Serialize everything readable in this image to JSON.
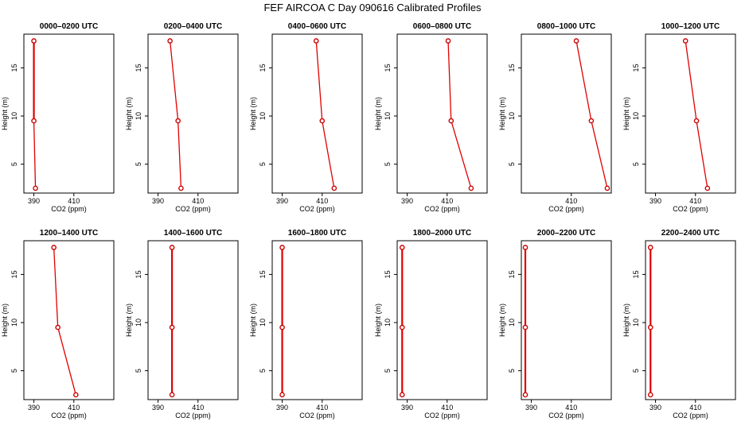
{
  "figure_title": "FEF AIRCOA C  Day 090616  Calibrated Profiles",
  "chart_data": [
    {
      "type": "line",
      "title": "0000–0200 UTC",
      "xlabel": "CO2 (ppm)",
      "ylabel": "Height (m)",
      "xticks": [
        390,
        410
      ],
      "yticks": [
        5,
        10,
        15
      ],
      "xlim": [
        385,
        430
      ],
      "ylim": [
        2,
        18.5
      ],
      "series": [
        {
          "points": [
            {
              "x": 390.0,
              "y": 17.8
            },
            {
              "x": 390.0,
              "y": 9.5
            },
            {
              "x": 390.8,
              "y": 2.5
            }
          ]
        }
      ]
    },
    {
      "type": "line",
      "title": "0200–0400 UTC",
      "xlabel": "CO2 (ppm)",
      "ylabel": "Height (m)",
      "xticks": [
        390,
        410
      ],
      "yticks": [
        5,
        10,
        15
      ],
      "xlim": [
        385,
        430
      ],
      "ylim": [
        2,
        18.5
      ],
      "series": [
        {
          "points": [
            {
              "x": 396.0,
              "y": 17.8
            },
            {
              "x": 400.0,
              "y": 9.5
            },
            {
              "x": 401.5,
              "y": 2.5
            }
          ]
        }
      ]
    },
    {
      "type": "line",
      "title": "0400–0600 UTC",
      "xlabel": "CO2 (ppm)",
      "ylabel": "Height (m)",
      "xticks": [
        390,
        410
      ],
      "yticks": [
        5,
        10,
        15
      ],
      "xlim": [
        385,
        430
      ],
      "ylim": [
        2,
        18.5
      ],
      "series": [
        {
          "points": [
            {
              "x": 407.0,
              "y": 17.8
            },
            {
              "x": 410.0,
              "y": 9.5
            },
            {
              "x": 416.0,
              "y": 2.5
            }
          ]
        }
      ]
    },
    {
      "type": "line",
      "title": "0600–0800 UTC",
      "xlabel": "CO2 (ppm)",
      "ylabel": "Height (m)",
      "xticks": [
        390,
        410
      ],
      "yticks": [
        5,
        10,
        15
      ],
      "xlim": [
        385,
        430
      ],
      "ylim": [
        2,
        18.5
      ],
      "series": [
        {
          "points": [
            {
              "x": 410.5,
              "y": 17.8
            },
            {
              "x": 412.0,
              "y": 9.5
            },
            {
              "x": 422.0,
              "y": 2.5
            }
          ]
        }
      ]
    },
    {
      "type": "line",
      "title": "0800–1000 UTC",
      "xlabel": "CO2 (ppm)",
      "ylabel": "Height (m)",
      "xticks": [
        410
      ],
      "yticks": [
        5,
        10,
        15
      ],
      "xlim": [
        385,
        430
      ],
      "ylim": [
        2,
        18.5
      ],
      "series": [
        {
          "points": [
            {
              "x": 412.5,
              "y": 17.8
            },
            {
              "x": 420.0,
              "y": 9.5
            },
            {
              "x": 428.0,
              "y": 2.5
            }
          ]
        }
      ]
    },
    {
      "type": "line",
      "title": "1000–1200 UTC",
      "xlabel": "CO2 (ppm)",
      "ylabel": "Height (m)",
      "xticks": [
        390,
        410
      ],
      "yticks": [
        5,
        10,
        15
      ],
      "xlim": [
        385,
        430
      ],
      "ylim": [
        2,
        18.5
      ],
      "series": [
        {
          "points": [
            {
              "x": 405.0,
              "y": 17.8
            },
            {
              "x": 410.5,
              "y": 9.5
            },
            {
              "x": 416.0,
              "y": 2.5
            }
          ]
        }
      ]
    },
    {
      "type": "line",
      "title": "1200–1400 UTC",
      "xlabel": "CO2 (ppm)",
      "ylabel": "Height (m)",
      "xticks": [
        390,
        410
      ],
      "yticks": [
        5,
        10,
        15
      ],
      "xlim": [
        385,
        430
      ],
      "ylim": [
        2,
        18.5
      ],
      "series": [
        {
          "points": [
            {
              "x": 400.0,
              "y": 17.8
            },
            {
              "x": 402.0,
              "y": 9.5
            },
            {
              "x": 411.0,
              "y": 2.5
            }
          ]
        }
      ]
    },
    {
      "type": "line",
      "title": "1400–1600 UTC",
      "xlabel": "CO2 (ppm)",
      "ylabel": "Height (m)",
      "xticks": [
        390,
        410
      ],
      "yticks": [
        5,
        10,
        15
      ],
      "xlim": [
        385,
        430
      ],
      "ylim": [
        2,
        18.5
      ],
      "series": [
        {
          "points": [
            {
              "x": 397.0,
              "y": 17.8
            },
            {
              "x": 397.0,
              "y": 9.5
            },
            {
              "x": 397.0,
              "y": 2.5
            }
          ]
        }
      ]
    },
    {
      "type": "line",
      "title": "1600–1800 UTC",
      "xlabel": "CO2 (ppm)",
      "ylabel": "Height (m)",
      "xticks": [
        390,
        410
      ],
      "yticks": [
        5,
        10,
        15
      ],
      "xlim": [
        385,
        430
      ],
      "ylim": [
        2,
        18.5
      ],
      "series": [
        {
          "points": [
            {
              "x": 390.0,
              "y": 17.8
            },
            {
              "x": 390.0,
              "y": 9.5
            },
            {
              "x": 390.0,
              "y": 2.5
            }
          ]
        }
      ]
    },
    {
      "type": "line",
      "title": "1800–2000 UTC",
      "xlabel": "CO2 (ppm)",
      "ylabel": "Height (m)",
      "xticks": [
        390,
        410
      ],
      "yticks": [
        5,
        10,
        15
      ],
      "xlim": [
        385,
        430
      ],
      "ylim": [
        2,
        18.5
      ],
      "series": [
        {
          "points": [
            {
              "x": 387.5,
              "y": 17.8
            },
            {
              "x": 387.5,
              "y": 9.5
            },
            {
              "x": 387.5,
              "y": 2.5
            }
          ]
        }
      ]
    },
    {
      "type": "line",
      "title": "2000–2200 UTC",
      "xlabel": "CO2 (ppm)",
      "ylabel": "Height (m)",
      "xticks": [
        390,
        410
      ],
      "yticks": [
        5,
        10,
        15
      ],
      "xlim": [
        385,
        430
      ],
      "ylim": [
        2,
        18.5
      ],
      "series": [
        {
          "points": [
            {
              "x": 387.0,
              "y": 17.8
            },
            {
              "x": 387.0,
              "y": 9.5
            },
            {
              "x": 387.0,
              "y": 2.5
            }
          ]
        }
      ]
    },
    {
      "type": "line",
      "title": "2200–2400 UTC",
      "xlabel": "CO2 (ppm)",
      "ylabel": "Height (m)",
      "xticks": [
        390,
        410
      ],
      "yticks": [
        5,
        10,
        15
      ],
      "xlim": [
        385,
        430
      ],
      "ylim": [
        2,
        18.5
      ],
      "series": [
        {
          "points": [
            {
              "x": 387.5,
              "y": 17.8
            },
            {
              "x": 387.5,
              "y": 9.5
            },
            {
              "x": 387.5,
              "y": 2.5
            }
          ]
        }
      ]
    }
  ],
  "colors": {
    "line": "#e00000",
    "marker": "#cc0000"
  }
}
